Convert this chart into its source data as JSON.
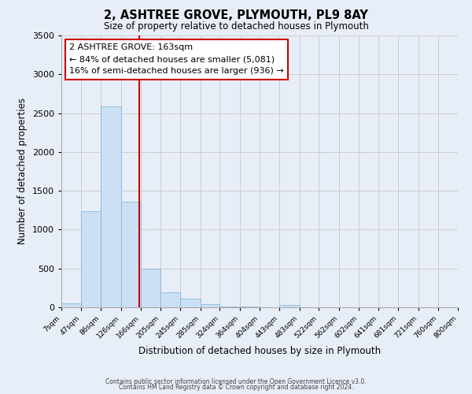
{
  "title": "2, ASHTREE GROVE, PLYMOUTH, PL9 8AY",
  "subtitle": "Size of property relative to detached houses in Plymouth",
  "xlabel": "Distribution of detached houses by size in Plymouth",
  "ylabel": "Number of detached properties",
  "bar_edges": [
    7,
    47,
    86,
    126,
    166,
    205,
    245,
    285,
    324,
    364,
    404,
    443,
    483,
    522,
    562,
    602,
    641,
    681,
    721,
    760,
    800
  ],
  "bar_heights": [
    50,
    1240,
    2590,
    1360,
    500,
    195,
    110,
    40,
    15,
    10,
    5,
    30,
    0,
    0,
    0,
    0,
    0,
    0,
    0,
    0
  ],
  "bar_color": "#cce0f5",
  "bar_edge_color": "#7ab0d4",
  "vline_x": 163,
  "vline_color": "#cc0000",
  "annotation_title": "2 ASHTREE GROVE: 163sqm",
  "annotation_line1": "← 84% of detached houses are smaller (5,081)",
  "annotation_line2": "16% of semi-detached houses are larger (936) →",
  "annotation_box_edge": "#cc0000",
  "annotation_box_bg": "#ffffff",
  "ylim": [
    0,
    3500
  ],
  "yticks": [
    0,
    500,
    1000,
    1500,
    2000,
    2500,
    3000,
    3500
  ],
  "grid_color": "#cccccc",
  "bg_color": "#e8eef8",
  "footer1": "Contains HM Land Registry data © Crown copyright and database right 2024.",
  "footer2": "Contains public sector information licensed under the Open Government Licence v3.0."
}
